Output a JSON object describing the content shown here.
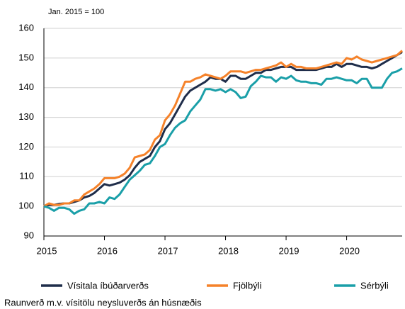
{
  "chart_data": {
    "type": "line",
    "annotation": "Jan. 2015 = 100",
    "note": "Raunverð m.v. vísitölu neysluverðs án húsnæðis",
    "x": [
      2015,
      2015.083,
      2015.167,
      2015.25,
      2015.333,
      2015.417,
      2015.5,
      2015.583,
      2015.667,
      2015.75,
      2015.833,
      2015.917,
      2016,
      2016.083,
      2016.167,
      2016.25,
      2016.333,
      2016.417,
      2016.5,
      2016.583,
      2016.667,
      2016.75,
      2016.833,
      2016.917,
      2017,
      2017.083,
      2017.167,
      2017.25,
      2017.333,
      2017.417,
      2017.5,
      2017.583,
      2017.667,
      2017.75,
      2017.833,
      2017.917,
      2018,
      2018.083,
      2018.167,
      2018.25,
      2018.333,
      2018.417,
      2018.5,
      2018.583,
      2018.667,
      2018.75,
      2018.833,
      2018.917,
      2019,
      2019.083,
      2019.167,
      2019.25,
      2019.333,
      2019.417,
      2019.5,
      2019.583,
      2019.667,
      2019.75,
      2019.833,
      2019.917,
      2020,
      2020.083,
      2020.167,
      2020.25,
      2020.333,
      2020.417,
      2020.5,
      2020.583,
      2020.667,
      2020.75,
      2020.833,
      2020.917
    ],
    "series": [
      {
        "name": "Vísitala íbúðarverðs",
        "color": "#1f2d4a",
        "values": [
          100,
          100.5,
          100.5,
          100.8,
          101,
          101,
          101.5,
          102,
          103,
          103.5,
          104.5,
          106,
          107.5,
          107,
          107.5,
          108,
          109,
          110.5,
          113,
          115,
          116,
          117,
          120,
          122,
          126,
          128,
          131,
          134,
          137,
          139,
          140,
          141,
          142,
          143.5,
          143,
          143,
          142,
          144,
          144,
          143,
          143,
          144,
          145,
          145,
          146,
          146,
          146.5,
          147,
          147,
          147,
          146,
          146,
          146,
          146,
          146,
          146.5,
          147,
          147,
          148,
          147,
          148,
          148,
          147.5,
          147,
          147,
          146.5,
          147,
          148,
          149,
          150,
          151,
          152
        ]
      },
      {
        "name": "Fjölbýli",
        "color": "#f5822a",
        "values": [
          100,
          101,
          100.5,
          100.5,
          101,
          101,
          102,
          102,
          104,
          105,
          106,
          107.5,
          109.5,
          109.5,
          109.5,
          110,
          111,
          113,
          116.5,
          117,
          117.5,
          119,
          122.5,
          124,
          129,
          131,
          134,
          138,
          142,
          142,
          143,
          143.5,
          144.5,
          144,
          143.5,
          143,
          144,
          145.5,
          145.5,
          145.5,
          145,
          145.5,
          146,
          146,
          146.5,
          147,
          147.5,
          148.5,
          147,
          148,
          147,
          147,
          146.5,
          146.5,
          146.5,
          147,
          147.5,
          148,
          148.5,
          148,
          150,
          149.5,
          150.5,
          149.5,
          149,
          148.5,
          149,
          149.5,
          150,
          150.5,
          151,
          152.5
        ]
      },
      {
        "name": "Sérbýli",
        "color": "#1a9fa8",
        "values": [
          100,
          99.5,
          98.5,
          99.5,
          99.5,
          99,
          97.5,
          98.5,
          99,
          101,
          101,
          101.5,
          101,
          103,
          102.5,
          104,
          106.5,
          109,
          110.5,
          112,
          114,
          114.5,
          117,
          120,
          121,
          124,
          126.5,
          128,
          129,
          132,
          134,
          136,
          139.5,
          139.5,
          139,
          139.5,
          138.5,
          139.5,
          138.5,
          136.5,
          137,
          140.5,
          142,
          144,
          143.5,
          143.5,
          142,
          143.5,
          143,
          144,
          142.5,
          142,
          142,
          141.5,
          141.5,
          141,
          143,
          143,
          143.5,
          143,
          142.5,
          142.5,
          141.5,
          143,
          143,
          140,
          140,
          140,
          143,
          145,
          145.5,
          146.5
        ]
      }
    ],
    "xlim": [
      2015,
      2020.917
    ],
    "xticks": [
      2015,
      2016,
      2017,
      2018,
      2019,
      2020
    ],
    "ylim": [
      90,
      160
    ],
    "yticks": [
      90,
      100,
      110,
      120,
      130,
      140,
      150,
      160
    ],
    "grid": true,
    "legend": "bottom"
  }
}
